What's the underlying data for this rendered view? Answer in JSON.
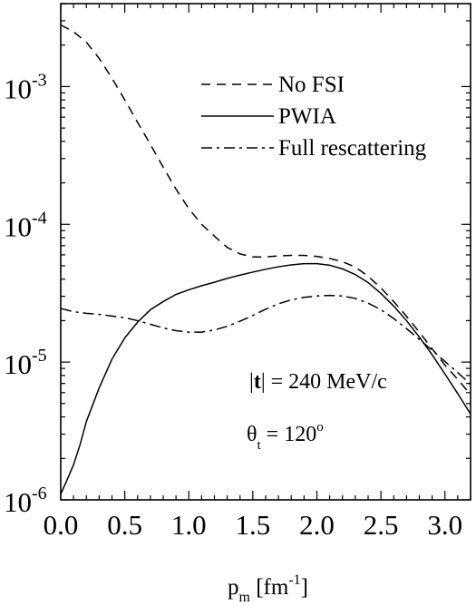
{
  "chart_data": {
    "type": "line",
    "xlabel": {
      "main": "p",
      "sub": "m",
      "rest": " [fm",
      "sup": "-1",
      "close": "]"
    },
    "xlim": [
      0,
      3.2
    ],
    "ylim": [
      1e-06,
      0.004
    ],
    "yscale": "log",
    "x_ticks": [
      "0.0",
      "0.5",
      "1.0",
      "1.5",
      "2.0",
      "2.5",
      "3.0"
    ],
    "y_ticks": [
      {
        "base": "10",
        "exp": "-6",
        "value": 1e-06
      },
      {
        "base": "10",
        "exp": "-5",
        "value": 1e-05
      },
      {
        "base": "10",
        "exp": "-4",
        "value": 0.0001
      },
      {
        "base": "10",
        "exp": "-3",
        "value": 0.001
      }
    ],
    "legend_position": "top-right",
    "annotations": [
      {
        "pre": "|",
        "bold": "t",
        "post": "| = 240 MeV/c"
      },
      {
        "symbol": "θ",
        "sub": "t",
        "eq": " = 120",
        "sup": "o"
      }
    ],
    "series": [
      {
        "name": "No FSI",
        "dash": "dashed",
        "x": [
          0.0,
          0.1,
          0.2,
          0.3,
          0.4,
          0.5,
          0.6,
          0.7,
          0.8,
          0.9,
          1.0,
          1.1,
          1.2,
          1.3,
          1.4,
          1.5,
          1.6,
          1.7,
          1.8,
          1.9,
          2.0,
          2.1,
          2.2,
          2.3,
          2.4,
          2.5,
          2.6,
          2.7,
          2.8,
          2.9,
          3.0,
          3.1,
          3.2
        ],
        "y": [
          0.0028,
          0.0025,
          0.0021,
          0.0016,
          0.00115,
          0.0008,
          0.00055,
          0.00038,
          0.00026,
          0.00018,
          0.00013,
          0.0001,
          8.2e-05,
          6.8e-05,
          6.1e-05,
          5.8e-05,
          5.8e-05,
          5.9e-05,
          5.95e-05,
          5.95e-05,
          5.85e-05,
          5.65e-05,
          5.35e-05,
          4.9e-05,
          4.2e-05,
          3.45e-05,
          2.75e-05,
          2.15e-05,
          1.65e-05,
          1.25e-05,
          9.5e-06,
          7.5e-06,
          5.8e-06
        ]
      },
      {
        "name": "PWIA",
        "dash": "solid",
        "x": [
          0.0,
          0.05,
          0.1,
          0.15,
          0.2,
          0.3,
          0.4,
          0.5,
          0.6,
          0.7,
          0.8,
          0.9,
          1.0,
          1.1,
          1.2,
          1.3,
          1.4,
          1.5,
          1.6,
          1.7,
          1.8,
          1.9,
          2.0,
          2.1,
          2.2,
          2.3,
          2.4,
          2.5,
          2.6,
          2.7,
          2.8,
          2.9,
          3.0,
          3.1,
          3.2
        ],
        "y": [
          1.1e-06,
          1.4e-06,
          1.8e-06,
          2.5e-06,
          3.7e-06,
          6.5e-06,
          1.05e-05,
          1.5e-05,
          1.95e-05,
          2.4e-05,
          2.75e-05,
          3.1e-05,
          3.35e-05,
          3.58e-05,
          3.8e-05,
          4.05e-05,
          4.28e-05,
          4.5e-05,
          4.72e-05,
          4.92e-05,
          5.08e-05,
          5.18e-05,
          5.18e-05,
          5.05e-05,
          4.75e-05,
          4.32e-05,
          3.78e-05,
          3.15e-05,
          2.55e-05,
          2e-05,
          1.52e-05,
          1.13e-05,
          8.2e-06,
          5.9e-06,
          4.2e-06
        ]
      },
      {
        "name": "Full rescattering",
        "dash": "dashdot",
        "x": [
          0.0,
          0.1,
          0.2,
          0.3,
          0.4,
          0.5,
          0.6,
          0.7,
          0.8,
          0.9,
          1.0,
          1.1,
          1.2,
          1.3,
          1.4,
          1.5,
          1.6,
          1.7,
          1.8,
          1.9,
          2.0,
          2.1,
          2.2,
          2.3,
          2.4,
          2.5,
          2.6,
          2.7,
          2.8,
          2.9,
          3.0,
          3.1,
          3.2
        ],
        "y": [
          2.45e-05,
          2.32e-05,
          2.26e-05,
          2.22e-05,
          2.16e-05,
          2.1e-05,
          2e-05,
          1.88e-05,
          1.77e-05,
          1.69e-05,
          1.65e-05,
          1.65e-05,
          1.71e-05,
          1.82e-05,
          1.98e-05,
          2.18e-05,
          2.42e-05,
          2.65e-05,
          2.83e-05,
          2.95e-05,
          3.02e-05,
          3.05e-05,
          3.02e-05,
          2.9e-05,
          2.68e-05,
          2.4e-05,
          2.07e-05,
          1.75e-05,
          1.46e-05,
          1.22e-05,
          1.01e-05,
          8.4e-06,
          6.9e-06
        ]
      }
    ]
  }
}
